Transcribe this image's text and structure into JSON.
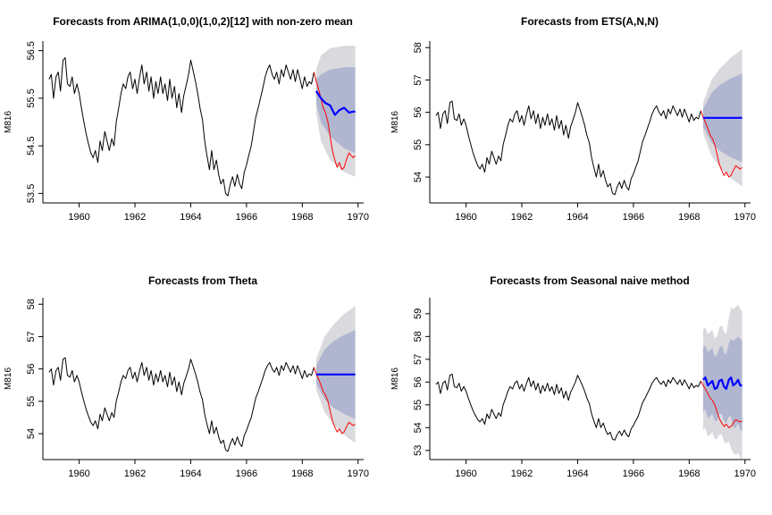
{
  "colors": {
    "history": "#000000",
    "actual": "#ff0000",
    "forecast": "#0000ff",
    "band80": "#b0b6d0",
    "band95": "#d9d9de"
  },
  "chart_data": [
    {
      "type": "line",
      "title": "Forecasts from ARIMA(1,0,0)(1,0,2)[12] with non-zero mean",
      "ylabel": "M816",
      "xlim": [
        1958.7,
        1970.2
      ],
      "ylim": [
        53.3,
        56.7
      ],
      "xticks": [
        1960,
        1962,
        1964,
        1966,
        1968,
        1970
      ],
      "yticks": [
        53.5,
        54.5,
        55.5,
        56.5
      ],
      "ytick_labels": [
        "53.5",
        "54.5",
        "55.5",
        "56.5"
      ],
      "forecast_start": 1968.5,
      "forecast": [
        [
          1968.5,
          55.65
        ],
        [
          1968.67,
          55.5
        ],
        [
          1968.83,
          55.4
        ],
        [
          1969.0,
          55.35
        ],
        [
          1969.17,
          55.15
        ],
        [
          1969.33,
          55.25
        ],
        [
          1969.5,
          55.3
        ],
        [
          1969.67,
          55.2
        ],
        [
          1969.83,
          55.22
        ],
        [
          1969.9,
          55.22
        ]
      ],
      "pi80_upper": [
        [
          1968.5,
          55.9
        ],
        [
          1968.67,
          56.0
        ],
        [
          1969.0,
          56.1
        ],
        [
          1969.5,
          56.15
        ],
        [
          1969.9,
          56.15
        ]
      ],
      "pi80_lower": [
        [
          1968.5,
          55.4
        ],
        [
          1968.67,
          55.0
        ],
        [
          1969.0,
          54.7
        ],
        [
          1969.5,
          54.45
        ],
        [
          1969.9,
          54.35
        ]
      ],
      "pi95_upper": [
        [
          1968.5,
          56.1
        ],
        [
          1968.67,
          56.4
        ],
        [
          1969.0,
          56.55
        ],
        [
          1969.5,
          56.6
        ],
        [
          1969.9,
          56.6
        ]
      ],
      "pi95_lower": [
        [
          1968.5,
          55.2
        ],
        [
          1968.67,
          54.6
        ],
        [
          1969.0,
          54.2
        ],
        [
          1969.5,
          53.95
        ],
        [
          1969.9,
          53.85
        ]
      ]
    },
    {
      "type": "line",
      "title": "Forecasts from ETS(A,N,N)",
      "ylabel": "M816",
      "xlim": [
        1958.7,
        1970.2
      ],
      "ylim": [
        53.2,
        58.2
      ],
      "xticks": [
        1960,
        1962,
        1964,
        1966,
        1968,
        1970
      ],
      "yticks": [
        54,
        55,
        56,
        57,
        58
      ],
      "ytick_labels": [
        "54",
        "55",
        "56",
        "57",
        "58"
      ],
      "forecast_start": 1968.5,
      "forecast": [
        [
          1968.5,
          55.83
        ],
        [
          1969.9,
          55.83
        ]
      ],
      "pi80_upper": [
        [
          1968.5,
          56.1
        ],
        [
          1968.8,
          56.6
        ],
        [
          1969.1,
          56.85
        ],
        [
          1969.5,
          57.05
        ],
        [
          1969.9,
          57.2
        ]
      ],
      "pi80_lower": [
        [
          1968.5,
          55.56
        ],
        [
          1968.8,
          55.06
        ],
        [
          1969.1,
          54.81
        ],
        [
          1969.5,
          54.61
        ],
        [
          1969.9,
          54.46
        ]
      ],
      "pi95_upper": [
        [
          1968.5,
          56.3
        ],
        [
          1968.8,
          57.0
        ],
        [
          1969.1,
          57.35
        ],
        [
          1969.5,
          57.7
        ],
        [
          1969.9,
          57.95
        ]
      ],
      "pi95_lower": [
        [
          1968.5,
          55.36
        ],
        [
          1968.8,
          54.66
        ],
        [
          1969.1,
          54.31
        ],
        [
          1969.5,
          53.96
        ],
        [
          1969.9,
          53.71
        ]
      ]
    },
    {
      "type": "line",
      "title": "Forecasts from Theta",
      "ylabel": "M816",
      "xlim": [
        1958.7,
        1970.2
      ],
      "ylim": [
        53.2,
        58.2
      ],
      "xticks": [
        1960,
        1962,
        1964,
        1966,
        1968,
        1970
      ],
      "yticks": [
        54,
        55,
        56,
        57,
        58
      ],
      "ytick_labels": [
        "54",
        "55",
        "56",
        "57",
        "58"
      ],
      "forecast_start": 1968.5,
      "forecast": [
        [
          1968.5,
          55.83
        ],
        [
          1969.9,
          55.83
        ]
      ],
      "pi80_upper": [
        [
          1968.5,
          56.1
        ],
        [
          1968.8,
          56.6
        ],
        [
          1969.1,
          56.85
        ],
        [
          1969.5,
          57.05
        ],
        [
          1969.9,
          57.2
        ]
      ],
      "pi80_lower": [
        [
          1968.5,
          55.56
        ],
        [
          1968.8,
          55.06
        ],
        [
          1969.1,
          54.81
        ],
        [
          1969.5,
          54.61
        ],
        [
          1969.9,
          54.46
        ]
      ],
      "pi95_upper": [
        [
          1968.5,
          56.3
        ],
        [
          1968.8,
          57.0
        ],
        [
          1969.1,
          57.35
        ],
        [
          1969.5,
          57.7
        ],
        [
          1969.9,
          57.95
        ]
      ],
      "pi95_lower": [
        [
          1968.5,
          55.36
        ],
        [
          1968.8,
          54.66
        ],
        [
          1969.1,
          54.31
        ],
        [
          1969.5,
          53.96
        ],
        [
          1969.9,
          53.71
        ]
      ]
    },
    {
      "type": "line",
      "title": "Forecasts from Seasonal naive method",
      "ylabel": "M816",
      "xlim": [
        1958.7,
        1970.2
      ],
      "ylim": [
        52.6,
        59.7
      ],
      "xticks": [
        1960,
        1962,
        1964,
        1966,
        1968,
        1970
      ],
      "yticks": [
        53,
        54,
        55,
        56,
        57,
        58,
        59
      ],
      "ytick_labels": [
        "53",
        "54",
        "55",
        "56",
        "57",
        "58",
        "59"
      ],
      "forecast_start": 1968.5,
      "forecast": [
        [
          1968.5,
          56.1
        ],
        [
          1968.58,
          56.2
        ],
        [
          1968.67,
          55.85
        ],
        [
          1968.75,
          55.95
        ],
        [
          1968.83,
          56.05
        ],
        [
          1968.92,
          55.7
        ],
        [
          1969.0,
          55.75
        ],
        [
          1969.08,
          56.05
        ],
        [
          1969.17,
          56.1
        ],
        [
          1969.25,
          55.8
        ],
        [
          1969.33,
          55.7
        ],
        [
          1969.42,
          56.1
        ],
        [
          1969.5,
          56.2
        ],
        [
          1969.58,
          55.85
        ],
        [
          1969.67,
          55.95
        ],
        [
          1969.75,
          56.1
        ],
        [
          1969.83,
          55.85
        ],
        [
          1969.9,
          55.85
        ]
      ],
      "pi80_upper": [
        [
          1968.5,
          57.5
        ],
        [
          1968.58,
          57.6
        ],
        [
          1968.67,
          57.3
        ],
        [
          1968.75,
          57.4
        ],
        [
          1968.83,
          57.5
        ],
        [
          1968.92,
          57.1
        ],
        [
          1969.0,
          57.2
        ],
        [
          1969.08,
          57.5
        ],
        [
          1969.17,
          57.6
        ],
        [
          1969.25,
          57.3
        ],
        [
          1969.33,
          57.2
        ],
        [
          1969.42,
          57.7
        ],
        [
          1969.5,
          57.9
        ],
        [
          1969.58,
          57.8
        ],
        [
          1969.67,
          57.9
        ],
        [
          1969.75,
          58.0
        ],
        [
          1969.83,
          57.9
        ],
        [
          1969.9,
          57.85
        ]
      ],
      "pi80_lower": [
        [
          1968.5,
          54.7
        ],
        [
          1968.58,
          54.8
        ],
        [
          1968.67,
          54.4
        ],
        [
          1968.75,
          54.5
        ],
        [
          1968.83,
          54.6
        ],
        [
          1968.92,
          54.3
        ],
        [
          1969.0,
          54.3
        ],
        [
          1969.08,
          54.6
        ],
        [
          1969.17,
          54.6
        ],
        [
          1969.25,
          54.3
        ],
        [
          1969.33,
          54.2
        ],
        [
          1969.42,
          54.5
        ],
        [
          1969.5,
          54.5
        ],
        [
          1969.58,
          54.0
        ],
        [
          1969.67,
          54.0
        ],
        [
          1969.75,
          54.2
        ],
        [
          1969.83,
          53.9
        ],
        [
          1969.9,
          53.85
        ]
      ],
      "pi95_upper": [
        [
          1968.5,
          58.3
        ],
        [
          1968.58,
          58.4
        ],
        [
          1968.67,
          58.1
        ],
        [
          1968.75,
          58.2
        ],
        [
          1968.83,
          58.3
        ],
        [
          1968.92,
          57.9
        ],
        [
          1969.0,
          58.0
        ],
        [
          1969.08,
          58.4
        ],
        [
          1969.17,
          58.5
        ],
        [
          1969.25,
          58.2
        ],
        [
          1969.33,
          58.1
        ],
        [
          1969.42,
          58.8
        ],
        [
          1969.5,
          59.3
        ],
        [
          1969.58,
          59.2
        ],
        [
          1969.67,
          59.3
        ],
        [
          1969.75,
          59.4
        ],
        [
          1969.83,
          59.2
        ],
        [
          1969.9,
          59.1
        ]
      ],
      "pi95_lower": [
        [
          1968.5,
          53.9
        ],
        [
          1968.58,
          54.0
        ],
        [
          1968.67,
          53.6
        ],
        [
          1968.75,
          53.7
        ],
        [
          1968.83,
          53.8
        ],
        [
          1968.92,
          53.5
        ],
        [
          1969.0,
          53.5
        ],
        [
          1969.08,
          53.7
        ],
        [
          1969.17,
          53.7
        ],
        [
          1969.25,
          53.4
        ],
        [
          1969.33,
          53.3
        ],
        [
          1969.42,
          53.4
        ],
        [
          1969.5,
          53.1
        ],
        [
          1969.58,
          52.9
        ],
        [
          1969.67,
          52.8
        ],
        [
          1969.75,
          52.9
        ],
        [
          1969.83,
          52.7
        ],
        [
          1969.9,
          52.6
        ]
      ]
    }
  ],
  "series_common": {
    "history": [
      [
        1958.92,
        55.9
      ],
      [
        1959.0,
        56.0
      ],
      [
        1959.08,
        55.5
      ],
      [
        1959.17,
        55.95
      ],
      [
        1959.25,
        56.05
      ],
      [
        1959.33,
        55.65
      ],
      [
        1959.42,
        56.3
      ],
      [
        1959.5,
        56.35
      ],
      [
        1959.58,
        55.8
      ],
      [
        1959.67,
        55.75
      ],
      [
        1959.75,
        55.95
      ],
      [
        1959.83,
        55.6
      ],
      [
        1959.92,
        55.8
      ],
      [
        1960.0,
        55.6
      ],
      [
        1960.08,
        55.3
      ],
      [
        1960.17,
        55.0
      ],
      [
        1960.25,
        54.75
      ],
      [
        1960.33,
        54.55
      ],
      [
        1960.42,
        54.35
      ],
      [
        1960.5,
        54.25
      ],
      [
        1960.58,
        54.4
      ],
      [
        1960.67,
        54.15
      ],
      [
        1960.75,
        54.6
      ],
      [
        1960.83,
        54.4
      ],
      [
        1960.92,
        54.8
      ],
      [
        1961.0,
        54.6
      ],
      [
        1961.08,
        54.4
      ],
      [
        1961.17,
        54.65
      ],
      [
        1961.25,
        54.5
      ],
      [
        1961.33,
        55.0
      ],
      [
        1961.42,
        55.3
      ],
      [
        1961.5,
        55.6
      ],
      [
        1961.58,
        55.8
      ],
      [
        1961.67,
        55.7
      ],
      [
        1961.75,
        55.95
      ],
      [
        1961.83,
        56.05
      ],
      [
        1961.92,
        55.7
      ],
      [
        1962.0,
        55.9
      ],
      [
        1962.08,
        55.6
      ],
      [
        1962.17,
        55.95
      ],
      [
        1962.25,
        56.2
      ],
      [
        1962.33,
        55.8
      ],
      [
        1962.42,
        56.05
      ],
      [
        1962.5,
        55.65
      ],
      [
        1962.58,
        55.95
      ],
      [
        1962.67,
        55.5
      ],
      [
        1962.75,
        55.85
      ],
      [
        1962.83,
        55.6
      ],
      [
        1962.92,
        55.95
      ],
      [
        1963.0,
        55.6
      ],
      [
        1963.08,
        55.8
      ],
      [
        1963.17,
        55.45
      ],
      [
        1963.25,
        55.9
      ],
      [
        1963.33,
        55.5
      ],
      [
        1963.42,
        55.75
      ],
      [
        1963.5,
        55.3
      ],
      [
        1963.58,
        55.6
      ],
      [
        1963.67,
        55.2
      ],
      [
        1963.75,
        55.55
      ],
      [
        1963.83,
        55.75
      ],
      [
        1963.92,
        56.0
      ],
      [
        1964.0,
        56.3
      ],
      [
        1964.08,
        56.1
      ],
      [
        1964.17,
        55.85
      ],
      [
        1964.25,
        55.6
      ],
      [
        1964.33,
        55.3
      ],
      [
        1964.42,
        55.05
      ],
      [
        1964.5,
        54.6
      ],
      [
        1964.58,
        54.3
      ],
      [
        1964.67,
        54.0
      ],
      [
        1964.75,
        54.4
      ],
      [
        1964.83,
        54.0
      ],
      [
        1964.92,
        54.2
      ],
      [
        1965.0,
        53.9
      ],
      [
        1965.08,
        53.7
      ],
      [
        1965.17,
        53.8
      ],
      [
        1965.25,
        53.5
      ],
      [
        1965.33,
        53.45
      ],
      [
        1965.42,
        53.7
      ],
      [
        1965.5,
        53.85
      ],
      [
        1965.58,
        53.65
      ],
      [
        1965.67,
        53.9
      ],
      [
        1965.75,
        53.7
      ],
      [
        1965.83,
        53.6
      ],
      [
        1965.92,
        53.95
      ],
      [
        1966.0,
        54.1
      ],
      [
        1966.08,
        54.3
      ],
      [
        1966.17,
        54.5
      ],
      [
        1966.25,
        54.8
      ],
      [
        1966.33,
        55.1
      ],
      [
        1966.42,
        55.3
      ],
      [
        1966.5,
        55.5
      ],
      [
        1966.58,
        55.7
      ],
      [
        1966.67,
        55.95
      ],
      [
        1966.75,
        56.1
      ],
      [
        1966.83,
        56.2
      ],
      [
        1966.92,
        56.0
      ],
      [
        1967.0,
        55.9
      ],
      [
        1967.08,
        56.05
      ],
      [
        1967.17,
        55.8
      ],
      [
        1967.25,
        56.1
      ],
      [
        1967.33,
        55.95
      ],
      [
        1967.42,
        56.2
      ],
      [
        1967.5,
        56.05
      ],
      [
        1967.58,
        55.9
      ],
      [
        1967.67,
        56.1
      ],
      [
        1967.75,
        55.85
      ],
      [
        1967.83,
        56.1
      ],
      [
        1967.92,
        55.9
      ],
      [
        1968.0,
        55.7
      ],
      [
        1968.08,
        55.95
      ],
      [
        1968.17,
        55.75
      ],
      [
        1968.25,
        55.85
      ],
      [
        1968.33,
        55.8
      ],
      [
        1968.42,
        56.05
      ]
    ],
    "actual": [
      [
        1968.42,
        56.05
      ],
      [
        1968.5,
        55.85
      ],
      [
        1968.58,
        55.7
      ],
      [
        1968.67,
        55.5
      ],
      [
        1968.75,
        55.3
      ],
      [
        1968.83,
        55.2
      ],
      [
        1968.92,
        55.0
      ],
      [
        1969.0,
        54.7
      ],
      [
        1969.08,
        54.4
      ],
      [
        1969.17,
        54.2
      ],
      [
        1969.25,
        54.05
      ],
      [
        1969.33,
        54.15
      ],
      [
        1969.42,
        54.0
      ],
      [
        1969.5,
        54.05
      ],
      [
        1969.58,
        54.2
      ],
      [
        1969.67,
        54.35
      ],
      [
        1969.75,
        54.3
      ],
      [
        1969.83,
        54.25
      ],
      [
        1969.9,
        54.3
      ]
    ]
  }
}
